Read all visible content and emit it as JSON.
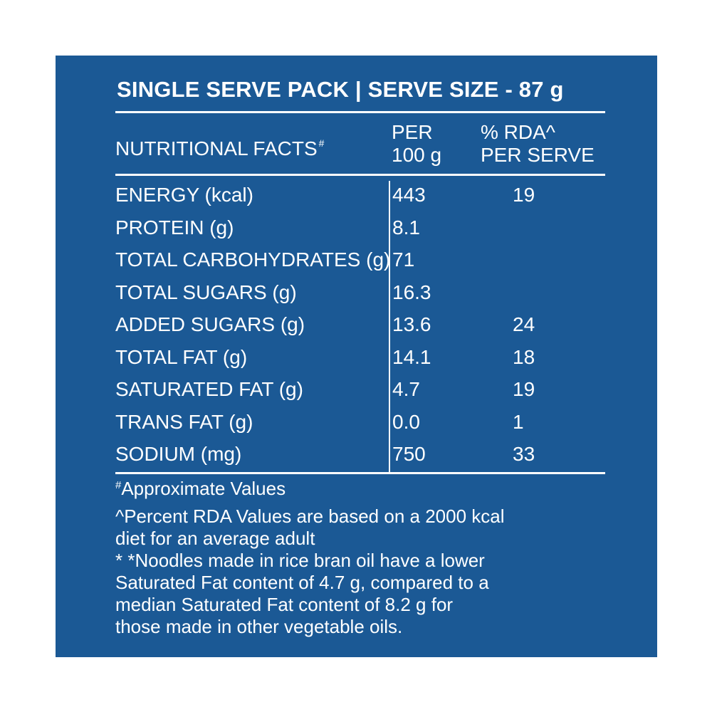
{
  "title": "SINGLE SERVE PACK | SERVE SIZE - 87 g",
  "header": {
    "label": "NUTRITIONAL FACTS",
    "label_mark": "#",
    "per_line1": "PER",
    "per_line2": "100 g",
    "rda_line1": "% RDA^",
    "rda_line2": "PER SERVE"
  },
  "rows": [
    {
      "label": "ENERGY (kcal)",
      "per": "443",
      "rda": "19"
    },
    {
      "label": "PROTEIN (g)",
      "per": "8.1",
      "rda": ""
    },
    {
      "label": "TOTAL CARBOHYDRATES (g)",
      "per": "71",
      "rda": ""
    },
    {
      "label": "TOTAL SUGARS (g)",
      "per": "16.3",
      "rda": ""
    },
    {
      "label": "ADDED SUGARS (g)",
      "per": "13.6",
      "rda": "24"
    },
    {
      "label": "TOTAL FAT (g)",
      "per": "14.1",
      "rda": "18"
    },
    {
      "label": "SATURATED FAT (g)",
      "per": "4.7",
      "rda": "19"
    },
    {
      "label": "TRANS FAT (g)",
      "per": "0.0",
      "rda": "1"
    },
    {
      "label": "SODIUM (mg)",
      "per": "750",
      "rda": "33"
    }
  ],
  "footnotes": {
    "approx_mark": "#",
    "approx": "Approximate Values",
    "rda_note_line1": "^Percent RDA Values are based on a 2000 kcal",
    "rda_note_line2": "diet for an average adult",
    "oil_line1": "* *Noodles made in rice bran oil have a lower",
    "oil_line2": "Saturated Fat content of 4.7 g, compared to a",
    "oil_line3": "median Saturated Fat content of 8.2 g for",
    "oil_line4": "those made in other vegetable oils."
  },
  "colors": {
    "panel": "#1b5995",
    "text": "#ffffff",
    "page": "#ffffff"
  }
}
